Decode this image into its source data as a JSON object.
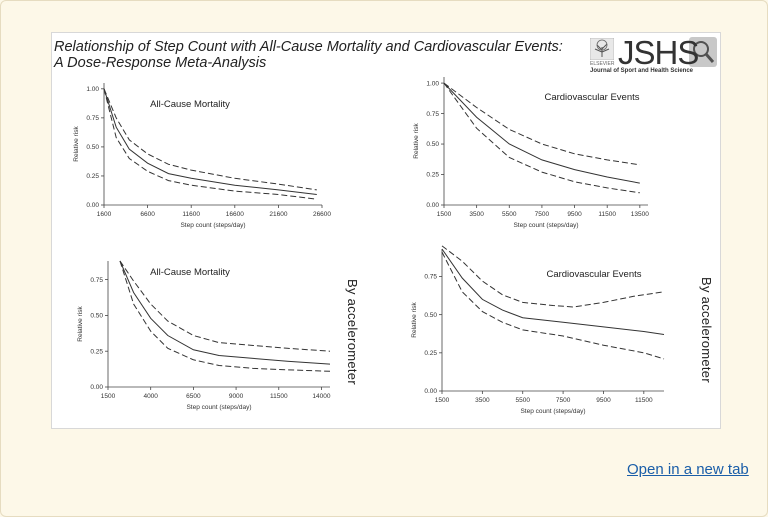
{
  "figure": {
    "title_line1": "Relationship of Step Count with All-Cause Mortality and Cardiovascular Events:",
    "title_line2": "A Dose-Response Meta-Analysis",
    "logo_text": "JSHS",
    "logo_publisher": "ELSEVIER",
    "logo_subtitle": "Journal of Sport and Health Science",
    "side_label_top_right": "By accelerometer",
    "side_label_bottom_right": "By accelerometer"
  },
  "link": {
    "label": "Open in a new tab"
  },
  "colors": {
    "line": "#333333",
    "link": "#1a5ea8",
    "background": "#fdf8e8"
  },
  "chart_data": [
    {
      "type": "line",
      "title": "All-Cause Mortality",
      "xlabel": "Step count (steps/day)",
      "ylabel": "Relative risk",
      "xlim": [
        1600,
        26600
      ],
      "ylim": [
        0,
        1.05
      ],
      "xticks": [
        1600,
        6600,
        11600,
        16600,
        21600,
        26600
      ],
      "xtick_labels": [
        "1600",
        "6600",
        "11600",
        "16600",
        "21600",
        "26600"
      ],
      "yticks": [
        0,
        0.25,
        0.5,
        0.75,
        1.0
      ],
      "ytick_labels": [
        "0.00",
        "0.25",
        "0.50",
        "0.75",
        "1.00"
      ],
      "series": [
        {
          "name": "estimate",
          "style": "solid",
          "x": [
            1600,
            3000,
            4500,
            6600,
            9000,
            11600,
            16600,
            21600,
            26000
          ],
          "y": [
            1.0,
            0.67,
            0.48,
            0.36,
            0.27,
            0.23,
            0.17,
            0.13,
            0.09
          ]
        },
        {
          "name": "upper CI",
          "style": "dashed",
          "x": [
            1600,
            3000,
            4500,
            6600,
            9000,
            11600,
            16600,
            21600,
            26000
          ],
          "y": [
            1.0,
            0.75,
            0.56,
            0.44,
            0.35,
            0.3,
            0.23,
            0.18,
            0.13
          ]
        },
        {
          "name": "lower CI",
          "style": "dashed",
          "x": [
            1600,
            3000,
            4500,
            6600,
            9000,
            11600,
            16600,
            21600,
            26000
          ],
          "y": [
            1.0,
            0.58,
            0.4,
            0.29,
            0.21,
            0.17,
            0.12,
            0.09,
            0.05
          ]
        }
      ]
    },
    {
      "type": "line",
      "title": "Cardiovascular Events",
      "xlabel": "Step count (steps/day)",
      "ylabel": "Relative risk",
      "xlim": [
        1500,
        14000
      ],
      "ylim": [
        0,
        1.05
      ],
      "xticks": [
        1500,
        3500,
        5500,
        7500,
        9500,
        11500,
        13500
      ],
      "xtick_labels": [
        "1500",
        "3500",
        "5500",
        "7500",
        "9500",
        "11500",
        "13500"
      ],
      "yticks": [
        0,
        0.25,
        0.5,
        0.75,
        1.0
      ],
      "ytick_labels": [
        "0.00",
        "0.25",
        "0.50",
        "0.75",
        "1.00"
      ],
      "series": [
        {
          "name": "estimate",
          "style": "solid",
          "x": [
            1500,
            3500,
            5500,
            7500,
            9500,
            11500,
            13500
          ],
          "y": [
            1.0,
            0.72,
            0.5,
            0.37,
            0.29,
            0.23,
            0.18
          ]
        },
        {
          "name": "upper CI",
          "style": "dashed",
          "x": [
            1500,
            3500,
            5500,
            7500,
            9500,
            11500,
            13500
          ],
          "y": [
            1.0,
            0.8,
            0.62,
            0.5,
            0.42,
            0.37,
            0.33
          ]
        },
        {
          "name": "lower CI",
          "style": "dashed",
          "x": [
            1500,
            3500,
            5500,
            7500,
            9500,
            11500,
            13500
          ],
          "y": [
            1.0,
            0.63,
            0.39,
            0.27,
            0.19,
            0.14,
            0.1
          ]
        }
      ]
    },
    {
      "type": "line",
      "title": "All-Cause Mortality",
      "xlabel": "Step count (steps/day)",
      "ylabel": "Relative risk",
      "xlim": [
        1500,
        14500
      ],
      "ylim": [
        0,
        0.88
      ],
      "xticks": [
        1500,
        4000,
        6500,
        9000,
        11500,
        14000
      ],
      "xtick_labels": [
        "1500",
        "4000",
        "6500",
        "9000",
        "11500",
        "14000"
      ],
      "yticks": [
        0,
        0.25,
        0.5,
        0.75
      ],
      "ytick_labels": [
        "0.00",
        "0.25",
        "0.50",
        "0.75"
      ],
      "series": [
        {
          "name": "estimate",
          "style": "solid",
          "x": [
            2200,
            3000,
            4000,
            5000,
            6500,
            8000,
            10000,
            12000,
            14500
          ],
          "y": [
            0.88,
            0.66,
            0.48,
            0.36,
            0.26,
            0.22,
            0.2,
            0.18,
            0.16
          ]
        },
        {
          "name": "upper CI",
          "style": "dashed",
          "x": [
            2200,
            3000,
            4000,
            5000,
            6500,
            8000,
            10000,
            12000,
            14500
          ],
          "y": [
            0.88,
            0.74,
            0.58,
            0.46,
            0.36,
            0.31,
            0.29,
            0.27,
            0.25
          ]
        },
        {
          "name": "lower CI",
          "style": "dashed",
          "x": [
            2200,
            3000,
            4000,
            5000,
            6500,
            8000,
            10000,
            12000,
            14500
          ],
          "y": [
            0.88,
            0.58,
            0.39,
            0.27,
            0.19,
            0.15,
            0.13,
            0.12,
            0.11
          ]
        }
      ]
    },
    {
      "type": "line",
      "title": "Cardiovascular Events",
      "xlabel": "Step count (steps/day)",
      "ylabel": "Relative risk",
      "xlim": [
        1500,
        12500
      ],
      "ylim": [
        0,
        0.93
      ],
      "xticks": [
        1500,
        3500,
        5500,
        7500,
        9500,
        11500
      ],
      "xtick_labels": [
        "1500",
        "3500",
        "5500",
        "7500",
        "9500",
        "11500"
      ],
      "yticks": [
        0,
        0.25,
        0.5,
        0.75
      ],
      "ytick_labels": [
        "0.00",
        "0.25",
        "0.50",
        "0.75"
      ],
      "series": [
        {
          "name": "estimate",
          "style": "solid",
          "x": [
            1500,
            2500,
            3500,
            4500,
            5500,
            7500,
            9500,
            11500,
            12500
          ],
          "y": [
            0.93,
            0.74,
            0.6,
            0.53,
            0.48,
            0.45,
            0.42,
            0.39,
            0.37
          ]
        },
        {
          "name": "upper CI",
          "style": "dashed",
          "x": [
            1500,
            2500,
            3500,
            4500,
            5500,
            7000,
            8000,
            9500,
            11000,
            12500
          ],
          "y": [
            0.95,
            0.85,
            0.72,
            0.63,
            0.58,
            0.56,
            0.55,
            0.58,
            0.62,
            0.65
          ]
        },
        {
          "name": "lower CI",
          "style": "dashed",
          "x": [
            1500,
            2500,
            3500,
            4500,
            5500,
            7500,
            9500,
            11500,
            12500
          ],
          "y": [
            0.91,
            0.65,
            0.52,
            0.45,
            0.4,
            0.36,
            0.3,
            0.25,
            0.21
          ]
        }
      ]
    }
  ]
}
